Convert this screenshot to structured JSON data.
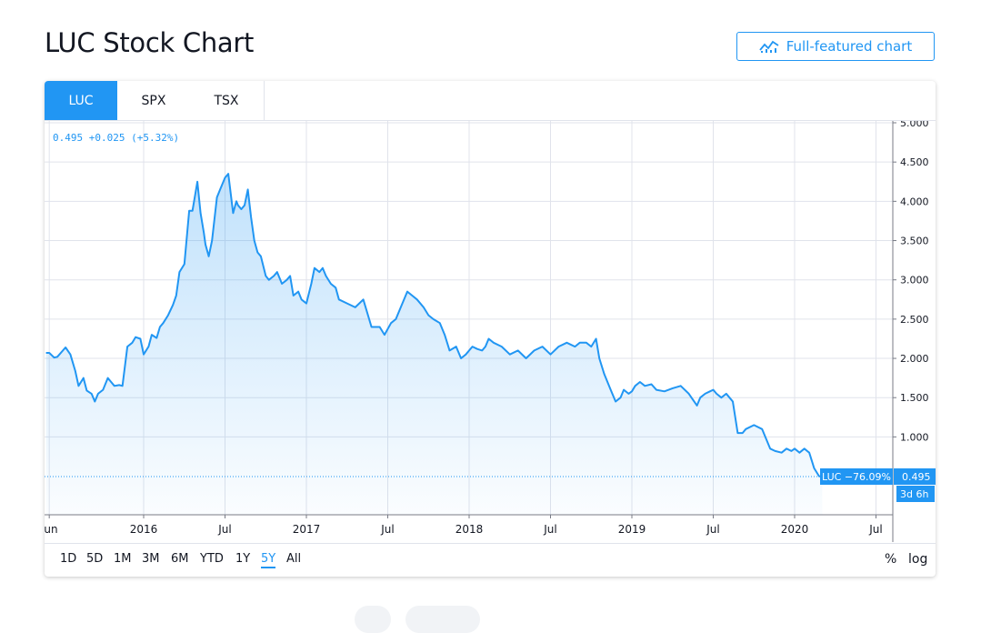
{
  "page": {
    "title": "LUC Stock Chart",
    "full_chart_label": "Full-featured chart"
  },
  "tabs": [
    {
      "label": "LUC",
      "active": true
    },
    {
      "label": "SPX",
      "active": false
    },
    {
      "label": "TSX",
      "active": false
    }
  ],
  "legend": "0.495 +0.025 (+5.32%)",
  "price_badge": {
    "label": "LUC −76.09%",
    "value": "0.495",
    "countdown": "3d 6h"
  },
  "range_buttons": [
    {
      "label": "1D",
      "active": false
    },
    {
      "label": "5D",
      "active": false
    },
    {
      "label": "1M",
      "active": false
    },
    {
      "label": "3M",
      "active": false
    },
    {
      "label": "6M",
      "active": false
    },
    {
      "label": "YTD",
      "active": false
    },
    {
      "label": "1Y",
      "active": false
    },
    {
      "label": "5Y",
      "active": true
    },
    {
      "label": "All",
      "active": false
    }
  ],
  "scale_buttons": {
    "percent": "%",
    "log": "log"
  },
  "colors": {
    "accent": "#2196f3",
    "line": "#2196f3",
    "grid": "#e0e3eb",
    "text": "#131722"
  },
  "chart_data": {
    "type": "area",
    "title": "",
    "xlabel": "",
    "ylabel": "",
    "ylim": [
      0,
      5.0
    ],
    "grid": true,
    "y_ticks": [
      "5.000",
      "4.500",
      "4.000",
      "3.500",
      "3.000",
      "2.500",
      "2.000",
      "1.500",
      "1.000"
    ],
    "x_ticks": [
      {
        "label": "Jun",
        "t": 2015.42
      },
      {
        "label": "2016",
        "t": 2016.0
      },
      {
        "label": "Jul",
        "t": 2016.5
      },
      {
        "label": "2017",
        "t": 2017.0
      },
      {
        "label": "Jul",
        "t": 2017.5
      },
      {
        "label": "2018",
        "t": 2018.0
      },
      {
        "label": "Jul",
        "t": 2018.5
      },
      {
        "label": "2019",
        "t": 2019.0
      },
      {
        "label": "Jul",
        "t": 2019.5
      },
      {
        "label": "2020",
        "t": 2020.0
      },
      {
        "label": "Jul",
        "t": 2020.5
      }
    ],
    "series": [
      {
        "x": [
          2015.4,
          2015.42,
          2015.45,
          2015.47,
          2015.52,
          2015.55,
          2015.58,
          2015.6,
          2015.63,
          2015.65,
          2015.68,
          2015.7,
          2015.72,
          2015.75,
          2015.78,
          2015.8,
          2015.82,
          2015.85,
          2015.87,
          2015.9,
          2015.93,
          2015.95,
          2015.98,
          2016.0,
          2016.03,
          2016.05,
          2016.08,
          2016.1,
          2016.12,
          2016.15,
          2016.18,
          2016.2,
          2016.22,
          2016.25,
          2016.28,
          2016.3,
          2016.33,
          2016.35,
          2016.37,
          2016.38,
          2016.4,
          2016.42,
          2016.45,
          2016.47,
          2016.5,
          2016.52,
          2016.55,
          2016.57,
          2016.58,
          2016.6,
          2016.62,
          2016.64,
          2016.66,
          2016.68,
          2016.7,
          2016.72,
          2016.75,
          2016.77,
          2016.8,
          2016.82,
          2016.85,
          2016.88,
          2016.9,
          2016.92,
          2016.95,
          2016.97,
          2017.0,
          2017.03,
          2017.05,
          2017.08,
          2017.1,
          2017.12,
          2017.15,
          2017.18,
          2017.2,
          2017.25,
          2017.3,
          2017.35,
          2017.4,
          2017.45,
          2017.48,
          2017.52,
          2017.55,
          2017.58,
          2017.62,
          2017.65,
          2017.68,
          2017.72,
          2017.75,
          2017.78,
          2017.82,
          2017.85,
          2017.88,
          2017.92,
          2017.95,
          2017.98,
          2018.0,
          2018.02,
          2018.05,
          2018.08,
          2018.1,
          2018.12,
          2018.15,
          2018.2,
          2018.25,
          2018.3,
          2018.35,
          2018.4,
          2018.45,
          2018.5,
          2018.55,
          2018.6,
          2018.65,
          2018.68,
          2018.72,
          2018.75,
          2018.78,
          2018.8,
          2018.83,
          2018.87,
          2018.9,
          2018.93,
          2018.95,
          2018.98,
          2019.0,
          2019.02,
          2019.05,
          2019.08,
          2019.12,
          2019.15,
          2019.2,
          2019.25,
          2019.3,
          2019.35,
          2019.4,
          2019.42,
          2019.45,
          2019.48,
          2019.5,
          2019.52,
          2019.55,
          2019.58,
          2019.6,
          2019.62,
          2019.65,
          2019.68,
          2019.7,
          2019.75,
          2019.8,
          2019.85,
          2019.88,
          2019.92,
          2019.95,
          2019.98,
          2020.0,
          2020.03,
          2020.06,
          2020.09,
          2020.12,
          2020.15,
          2020.17
        ],
        "y": [
          2.07,
          2.07,
          2.01,
          2.02,
          2.14,
          2.05,
          1.84,
          1.65,
          1.75,
          1.59,
          1.55,
          1.45,
          1.55,
          1.6,
          1.75,
          1.7,
          1.65,
          1.66,
          1.65,
          2.15,
          2.2,
          2.27,
          2.25,
          2.05,
          2.15,
          2.3,
          2.26,
          2.4,
          2.45,
          2.55,
          2.68,
          2.8,
          3.1,
          3.2,
          3.88,
          3.88,
          4.25,
          3.85,
          3.6,
          3.45,
          3.3,
          3.5,
          4.05,
          4.15,
          4.3,
          4.35,
          3.85,
          4.0,
          3.95,
          3.9,
          3.95,
          4.15,
          3.8,
          3.5,
          3.35,
          3.3,
          3.05,
          3.0,
          3.05,
          3.1,
          2.95,
          3.0,
          3.05,
          2.8,
          2.85,
          2.75,
          2.7,
          2.95,
          3.15,
          3.1,
          3.15,
          3.05,
          2.95,
          2.9,
          2.75,
          2.7,
          2.65,
          2.75,
          2.4,
          2.4,
          2.3,
          2.45,
          2.5,
          2.65,
          2.85,
          2.8,
          2.75,
          2.65,
          2.55,
          2.5,
          2.45,
          2.3,
          2.1,
          2.15,
          2.0,
          2.05,
          2.1,
          2.15,
          2.12,
          2.1,
          2.15,
          2.25,
          2.2,
          2.15,
          2.05,
          2.1,
          2.0,
          2.1,
          2.15,
          2.05,
          2.15,
          2.2,
          2.15,
          2.2,
          2.2,
          2.15,
          2.25,
          2.0,
          1.8,
          1.6,
          1.45,
          1.5,
          1.6,
          1.55,
          1.58,
          1.65,
          1.7,
          1.65,
          1.67,
          1.6,
          1.58,
          1.62,
          1.65,
          1.55,
          1.4,
          1.5,
          1.55,
          1.58,
          1.6,
          1.55,
          1.5,
          1.55,
          1.5,
          1.45,
          1.05,
          1.05,
          1.1,
          1.15,
          1.1,
          0.85,
          0.82,
          0.8,
          0.85,
          0.82,
          0.85,
          0.8,
          0.85,
          0.8,
          0.6,
          0.5,
          0.495
        ]
      }
    ],
    "last_price": 0.495
  }
}
